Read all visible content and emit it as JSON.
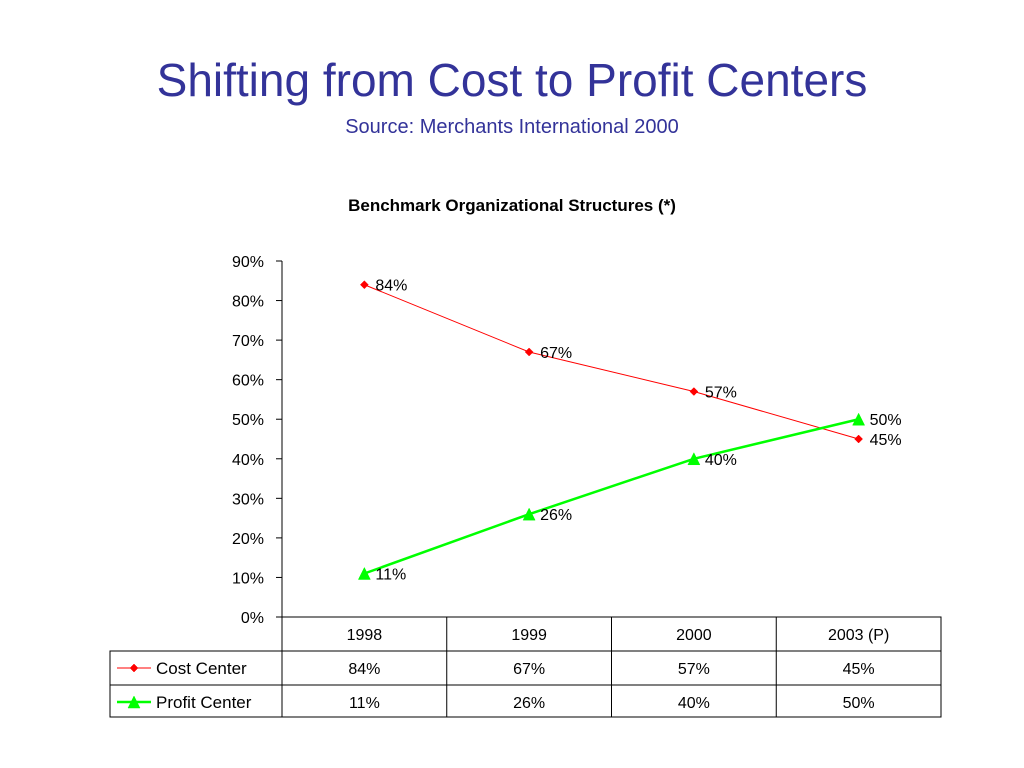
{
  "slide": {
    "title": "Shifting from Cost to Profit Centers",
    "subtitle": "Source: Merchants International 2000"
  },
  "colors": {
    "title": "#333399",
    "cost_center": "#ff0000",
    "profit_center": "#00ff00"
  },
  "chart_data": {
    "type": "line",
    "title": "Benchmark Organizational Structures (*)",
    "categories": [
      "1998",
      "1999",
      "2000",
      "2003 (P)"
    ],
    "yticks": [
      "0%",
      "10%",
      "20%",
      "30%",
      "40%",
      "50%",
      "60%",
      "70%",
      "80%",
      "90%"
    ],
    "ylim": [
      0,
      90
    ],
    "grid": false,
    "series": [
      {
        "name": "Cost Center",
        "values": [
          84,
          67,
          57,
          45
        ],
        "labels": [
          "84%",
          "67%",
          "57%",
          "45%"
        ],
        "marker": "diamond",
        "color": "#ff0000"
      },
      {
        "name": "Profit Center",
        "values": [
          11,
          26,
          40,
          50
        ],
        "labels": [
          "11%",
          "26%",
          "40%",
          "50%"
        ],
        "marker": "triangle",
        "color": "#00ff00"
      }
    ],
    "data_table": true
  }
}
